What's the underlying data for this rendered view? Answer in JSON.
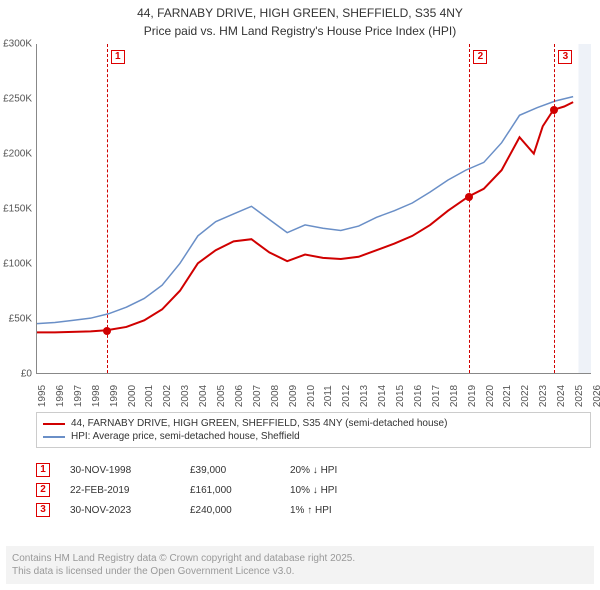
{
  "title_line1": "44, FARNABY DRIVE, HIGH GREEN, SHEFFIELD, S35 4NY",
  "title_line2": "Price paid vs. HM Land Registry's House Price Index (HPI)",
  "chart": {
    "type": "line",
    "background_color": "#ffffff",
    "x_min": 1995,
    "x_max": 2026,
    "y_min": 0,
    "y_max": 300000,
    "y_ticks": [
      0,
      50000,
      100000,
      150000,
      200000,
      250000,
      300000
    ],
    "y_tick_labels": [
      "£0",
      "£50K",
      "£100K",
      "£150K",
      "£200K",
      "£250K",
      "£300K"
    ],
    "x_ticks": [
      1995,
      1996,
      1997,
      1998,
      1999,
      2000,
      2001,
      2002,
      2003,
      2004,
      2005,
      2006,
      2007,
      2008,
      2009,
      2010,
      2011,
      2012,
      2013,
      2014,
      2015,
      2016,
      2017,
      2018,
      2019,
      2020,
      2021,
      2022,
      2023,
      2024,
      2025,
      2026
    ],
    "series": [
      {
        "name": "property",
        "color": "#d00000",
        "width": 2,
        "points": [
          [
            1995,
            37000
          ],
          [
            1996,
            37000
          ],
          [
            1997,
            37500
          ],
          [
            1998,
            38000
          ],
          [
            1998.9,
            39000
          ],
          [
            2000,
            42000
          ],
          [
            2001,
            48000
          ],
          [
            2002,
            58000
          ],
          [
            2003,
            75000
          ],
          [
            2004,
            100000
          ],
          [
            2005,
            112000
          ],
          [
            2006,
            120000
          ],
          [
            2007,
            122000
          ],
          [
            2008,
            110000
          ],
          [
            2009,
            102000
          ],
          [
            2010,
            108000
          ],
          [
            2011,
            105000
          ],
          [
            2012,
            104000
          ],
          [
            2013,
            106000
          ],
          [
            2014,
            112000
          ],
          [
            2015,
            118000
          ],
          [
            2016,
            125000
          ],
          [
            2017,
            135000
          ],
          [
            2018,
            148000
          ],
          [
            2019.15,
            161000
          ],
          [
            2020,
            168000
          ],
          [
            2021,
            185000
          ],
          [
            2022,
            215000
          ],
          [
            2022.8,
            200000
          ],
          [
            2023.3,
            225000
          ],
          [
            2023.9,
            240000
          ],
          [
            2024.5,
            243000
          ],
          [
            2025,
            247000
          ]
        ]
      },
      {
        "name": "hpi",
        "color": "#6a8fc7",
        "width": 1.5,
        "points": [
          [
            1995,
            45000
          ],
          [
            1996,
            46000
          ],
          [
            1997,
            48000
          ],
          [
            1998,
            50000
          ],
          [
            1999,
            54000
          ],
          [
            2000,
            60000
          ],
          [
            2001,
            68000
          ],
          [
            2002,
            80000
          ],
          [
            2003,
            100000
          ],
          [
            2004,
            125000
          ],
          [
            2005,
            138000
          ],
          [
            2006,
            145000
          ],
          [
            2007,
            152000
          ],
          [
            2008,
            140000
          ],
          [
            2009,
            128000
          ],
          [
            2010,
            135000
          ],
          [
            2011,
            132000
          ],
          [
            2012,
            130000
          ],
          [
            2013,
            134000
          ],
          [
            2014,
            142000
          ],
          [
            2015,
            148000
          ],
          [
            2016,
            155000
          ],
          [
            2017,
            165000
          ],
          [
            2018,
            176000
          ],
          [
            2019,
            185000
          ],
          [
            2020,
            192000
          ],
          [
            2021,
            210000
          ],
          [
            2022,
            235000
          ],
          [
            2023,
            242000
          ],
          [
            2024,
            248000
          ],
          [
            2025,
            252000
          ]
        ]
      }
    ],
    "future_band": {
      "from": 2025.3,
      "to": 2026,
      "color": "#eef2f8"
    },
    "markers": [
      {
        "n": "1",
        "year": 1998.9,
        "price": 39000,
        "color": "#d00000"
      },
      {
        "n": "2",
        "year": 2019.15,
        "price": 161000,
        "color": "#d00000"
      },
      {
        "n": "3",
        "year": 2023.9,
        "price": 240000,
        "color": "#d00000"
      }
    ]
  },
  "legend": [
    {
      "color": "#d00000",
      "label": "44, FARNABY DRIVE, HIGH GREEN, SHEFFIELD, S35 4NY (semi-detached house)"
    },
    {
      "color": "#6a8fc7",
      "label": "HPI: Average price, semi-detached house, Sheffield"
    }
  ],
  "sales": [
    {
      "n": "1",
      "date": "30-NOV-1998",
      "price": "£39,000",
      "delta": "20% ↓ HPI"
    },
    {
      "n": "2",
      "date": "22-FEB-2019",
      "price": "£161,000",
      "delta": "10% ↓ HPI"
    },
    {
      "n": "3",
      "date": "30-NOV-2023",
      "price": "£240,000",
      "delta": "1% ↑ HPI"
    }
  ],
  "attribution_line1": "Contains HM Land Registry data © Crown copyright and database right 2025.",
  "attribution_line2": "This data is licensed under the Open Government Licence v3.0."
}
